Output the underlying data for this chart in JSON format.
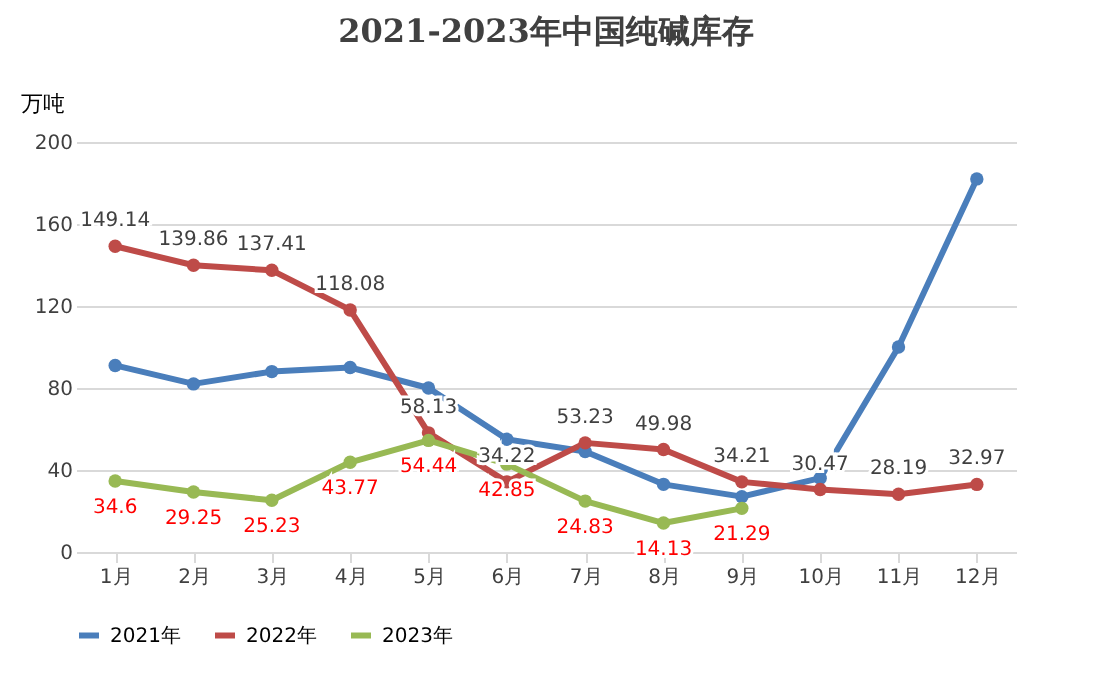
{
  "chart_data": {
    "type": "line",
    "title": "2021-2023年中国纯碱库存",
    "ylabel": "万吨",
    "categories": [
      "1月",
      "2月",
      "3月",
      "4月",
      "5月",
      "6月",
      "7月",
      "8月",
      "9月",
      "10月",
      "11月",
      "12月"
    ],
    "series": [
      {
        "name": "2021年",
        "color": "#4a7ebb",
        "values": [
          91,
          82,
          88,
          90,
          80,
          55,
          49,
          33,
          27,
          36,
          100,
          182
        ]
      },
      {
        "name": "2022年",
        "color": "#be4b48",
        "values": [
          149.14,
          139.86,
          137.41,
          118.08,
          58.13,
          34.22,
          53.23,
          49.98,
          34.21,
          30.47,
          28.19,
          32.97
        ],
        "value_labels": [
          "149.14",
          "139.86",
          "137.41",
          "118.08",
          "58.13",
          "34.22",
          "53.23",
          "49.98",
          "34.21",
          "30.47",
          "28.19",
          "32.97"
        ]
      },
      {
        "name": "2023年",
        "color": "#98b954",
        "values": [
          34.6,
          29.25,
          25.23,
          43.77,
          54.44,
          42.85,
          24.83,
          14.13,
          21.29,
          null,
          null,
          null
        ],
        "value_labels": [
          "34.6",
          "29.25",
          "25.23",
          "43.77",
          "54.44",
          "42.85",
          "24.83",
          "14.13",
          "21.29",
          null,
          null,
          null
        ]
      }
    ],
    "ylim": [
      0,
      200
    ],
    "yticks": [
      0,
      40,
      80,
      120,
      160,
      200
    ],
    "grid": "y",
    "legend": "bottom",
    "marker": "circle",
    "line_style": "solid"
  }
}
